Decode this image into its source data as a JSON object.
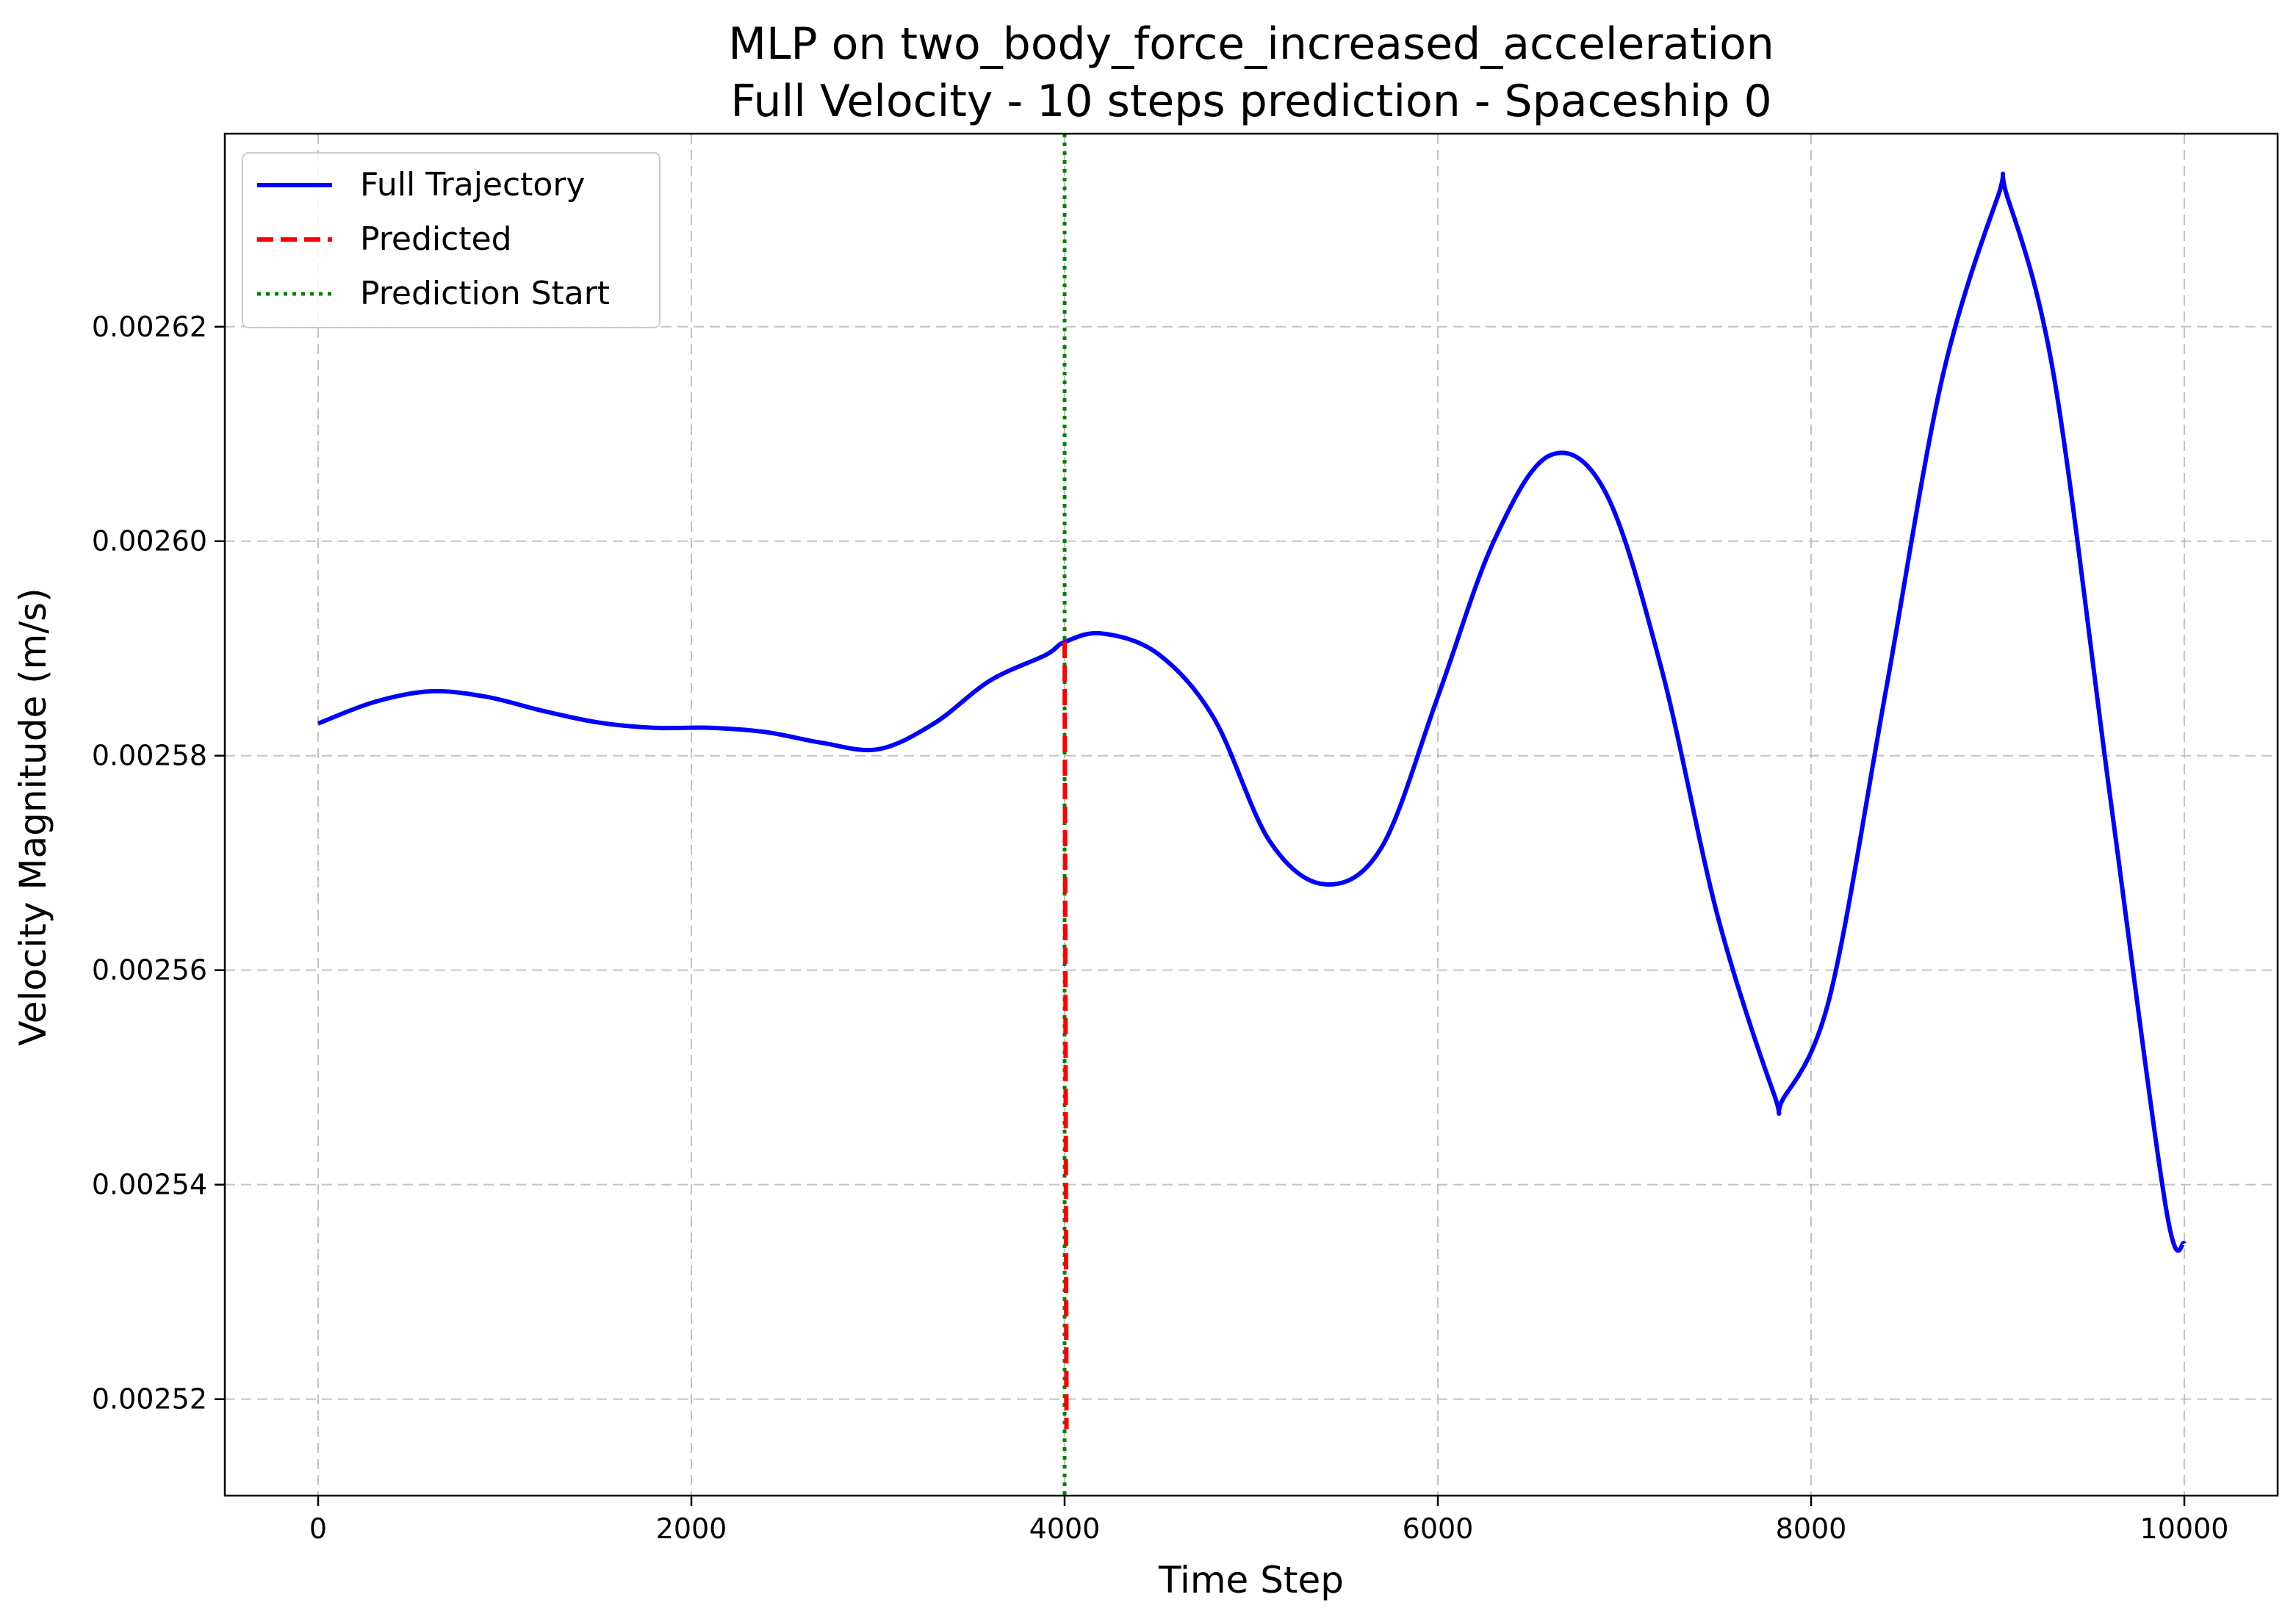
{
  "chart_data": {
    "type": "line",
    "title": "MLP on two_body_force_increased_acceleration",
    "subtitle": "Full Velocity - 10 steps prediction - Spaceship 0",
    "xlabel": "Time Step",
    "ylabel": "Velocity Magnitude (m/s)",
    "xlim": [
      -500,
      10500
    ],
    "ylim": [
      0.002511,
      0.002638
    ],
    "xticks": [
      0,
      2000,
      4000,
      6000,
      8000,
      10000
    ],
    "xtick_labels": [
      "0",
      "2000",
      "4000",
      "6000",
      "8000",
      "10000"
    ],
    "yticks": [
      0.00252,
      0.00254,
      0.00256,
      0.00258,
      0.0026,
      0.00262
    ],
    "ytick_labels": [
      "0.00252",
      "0.00254",
      "0.00256",
      "0.00258",
      "0.00260",
      "0.00262"
    ],
    "grid": true,
    "legend_position": "upper-left",
    "series": [
      {
        "name": "Full Trajectory",
        "color": "#0000ff",
        "style": "solid",
        "x": [
          0,
          300,
          600,
          900,
          1200,
          1500,
          1800,
          2100,
          2400,
          2700,
          3000,
          3300,
          3600,
          3900,
          4000,
          4200,
          4500,
          4800,
          5100,
          5400,
          5700,
          6000,
          6300,
          6600,
          6900,
          7200,
          7500,
          7800,
          7850,
          8100,
          8400,
          8700,
          9000,
          9050,
          9300,
          9600,
          9900,
          10000
        ],
        "y": [
          0.002583,
          0.002585,
          0.002586,
          0.0025855,
          0.0025842,
          0.0025831,
          0.0025826,
          0.0025826,
          0.0025822,
          0.0025812,
          0.0025806,
          0.002583,
          0.002587,
          0.0025894,
          0.0025906,
          0.0025914,
          0.0025895,
          0.0025835,
          0.002572,
          0.002568,
          0.0025715,
          0.0025855,
          0.0026,
          0.002608,
          0.0026045,
          0.002588,
          0.002565,
          0.0025485,
          0.002548,
          0.0025575,
          0.002586,
          0.002615,
          0.0026321,
          0.0026322,
          0.0026155,
          0.0025765,
          0.002538,
          0.0025345
        ]
      },
      {
        "name": "Predicted",
        "color": "#ff0000",
        "style": "dashed",
        "x": [
          4000,
          4005,
          4010
        ],
        "y": [
          0.0025906,
          0.002555,
          0.0025172
        ]
      }
    ],
    "vlines": [
      {
        "name": "Prediction Start",
        "x": 4000,
        "color": "#008000",
        "style": "dotted"
      }
    ]
  }
}
